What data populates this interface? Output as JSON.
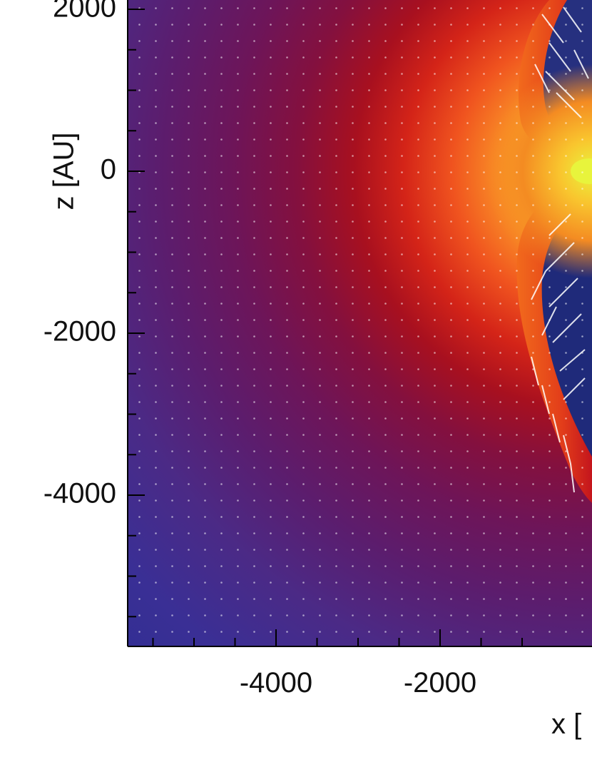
{
  "chart_data": {
    "type": "heatmap",
    "title": "",
    "xlabel": "x [",
    "ylabel": "z [AU]",
    "x_ticks": [
      -4000,
      -2000
    ],
    "x_tick_labels": [
      "-4000",
      "-2000"
    ],
    "y_ticks": [
      2000,
      0,
      -2000,
      -4000
    ],
    "y_tick_labels": [
      "2000",
      "0",
      "-2000",
      "-4000"
    ],
    "xlim_visible": [
      -5900,
      -1200
    ],
    "ylim": [
      -5900,
      2100
    ],
    "grid": false,
    "legend": "none",
    "overlay": "velocity vectors (white arrows)",
    "colormap": {
      "name": "inferno-like",
      "stops": [
        "#2a2a8f",
        "#3a2f95",
        "#4d2a86",
        "#5e1f72",
        "#6f1658",
        "#8a0f3c",
        "#b0141e",
        "#dd3a1a",
        "#f07a1c",
        "#f9bf2e",
        "#e6f03a"
      ]
    },
    "features": [
      {
        "label": "central dense core",
        "x": 0,
        "z": 0
      },
      {
        "label": "bipolar outflow cavity (upper)",
        "z_range": [
          500,
          2100
        ]
      },
      {
        "label": "bipolar outflow cavity (lower)",
        "z_range": [
          -3800,
          -500
        ]
      }
    ]
  }
}
